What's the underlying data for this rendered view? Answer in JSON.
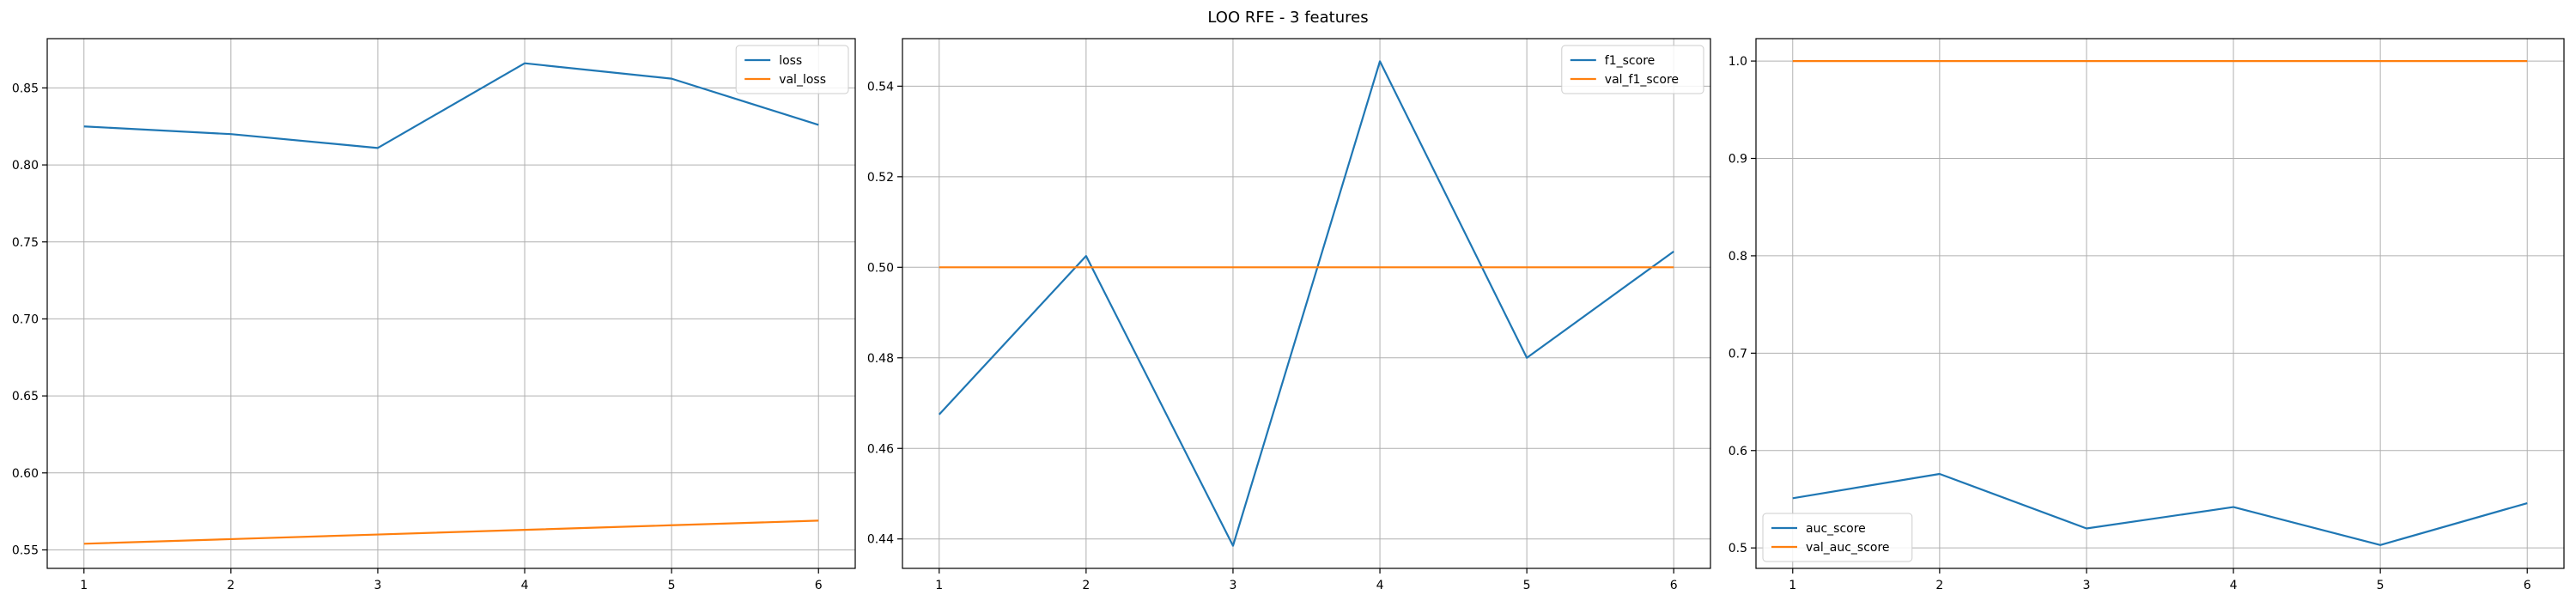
{
  "figure": {
    "title": "LOO RFE - 3 features"
  },
  "colors": {
    "train": "#1f77b4",
    "val": "#ff7f0e",
    "grid": "#b0b0b0",
    "axis": "#000000"
  },
  "chart_data": [
    {
      "type": "line",
      "x": [
        1,
        2,
        3,
        4,
        5,
        6
      ],
      "xlim": [
        0.75,
        6.25
      ],
      "ylim": [
        0.538,
        0.882
      ],
      "yticks": [
        0.55,
        0.6,
        0.65,
        0.7,
        0.75,
        0.8,
        0.85
      ],
      "ytick_labels": [
        "0.55",
        "0.60",
        "0.65",
        "0.70",
        "0.75",
        "0.80",
        "0.85"
      ],
      "xticks": [
        1,
        2,
        3,
        4,
        5,
        6
      ],
      "xtick_labels": [
        "1",
        "2",
        "3",
        "4",
        "5",
        "6"
      ],
      "grid": true,
      "legend": "upper-right",
      "series": [
        {
          "name": "loss",
          "values": [
            0.825,
            0.82,
            0.811,
            0.866,
            0.856,
            0.826
          ]
        },
        {
          "name": "val_loss",
          "values": [
            0.554,
            0.557,
            0.56,
            0.563,
            0.566,
            0.569
          ]
        }
      ]
    },
    {
      "type": "line",
      "x": [
        1,
        2,
        3,
        4,
        5,
        6
      ],
      "xlim": [
        0.75,
        6.25
      ],
      "ylim": [
        0.4335,
        0.5505
      ],
      "yticks": [
        0.44,
        0.46,
        0.48,
        0.5,
        0.52,
        0.54
      ],
      "ytick_labels": [
        "0.44",
        "0.46",
        "0.48",
        "0.50",
        "0.52",
        "0.54"
      ],
      "xticks": [
        1,
        2,
        3,
        4,
        5,
        6
      ],
      "xtick_labels": [
        "1",
        "2",
        "3",
        "4",
        "5",
        "6"
      ],
      "grid": true,
      "legend": "upper-right",
      "series": [
        {
          "name": "f1_score",
          "values": [
            0.4675,
            0.5025,
            0.4385,
            0.5455,
            0.48,
            0.5035
          ]
        },
        {
          "name": "val_f1_score",
          "values": [
            0.5,
            0.5,
            0.5,
            0.5,
            0.5,
            0.5
          ]
        }
      ]
    },
    {
      "type": "line",
      "x": [
        1,
        2,
        3,
        4,
        5,
        6
      ],
      "xlim": [
        0.75,
        6.25
      ],
      "ylim": [
        0.479,
        1.023
      ],
      "yticks": [
        0.5,
        0.6,
        0.7,
        0.8,
        0.9,
        1.0
      ],
      "ytick_labels": [
        "0.5",
        "0.6",
        "0.7",
        "0.8",
        "0.9",
        "1.0"
      ],
      "xticks": [
        1,
        2,
        3,
        4,
        5,
        6
      ],
      "xtick_labels": [
        "1",
        "2",
        "3",
        "4",
        "5",
        "6"
      ],
      "grid": true,
      "legend": "lower-left",
      "series": [
        {
          "name": "auc_score",
          "values": [
            0.551,
            0.576,
            0.52,
            0.542,
            0.503,
            0.546
          ]
        },
        {
          "name": "val_auc_score",
          "values": [
            1.0,
            1.0,
            1.0,
            1.0,
            1.0,
            1.0
          ]
        }
      ]
    }
  ]
}
